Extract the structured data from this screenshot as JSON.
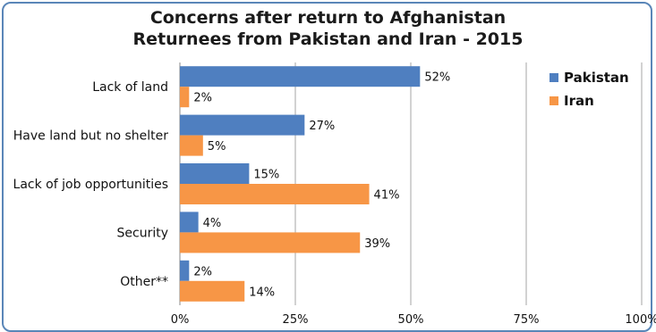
{
  "chart_data": {
    "type": "bar",
    "orientation": "horizontal",
    "title_lines": [
      "Concerns after return to Afghanistan",
      "Returnees from Pakistan and Iran - 2015"
    ],
    "categories": [
      "Lack of land",
      "Have land but no shelter",
      "Lack of job opportunities",
      "Security",
      "Other**"
    ],
    "series": [
      {
        "name": "Pakistan",
        "color": "#4f7fc0",
        "values": [
          52,
          27,
          15,
          4,
          2
        ]
      },
      {
        "name": "Iran",
        "color": "#f79646",
        "values": [
          2,
          5,
          41,
          39,
          14
        ]
      }
    ],
    "value_suffix": "%",
    "xlim": [
      0,
      100
    ],
    "xticks": [
      0,
      25,
      50,
      75,
      100
    ],
    "xtick_labels": [
      "0%",
      "25%",
      "50%",
      "75%",
      "100%"
    ],
    "grid": true,
    "legend_position": "top-right"
  }
}
